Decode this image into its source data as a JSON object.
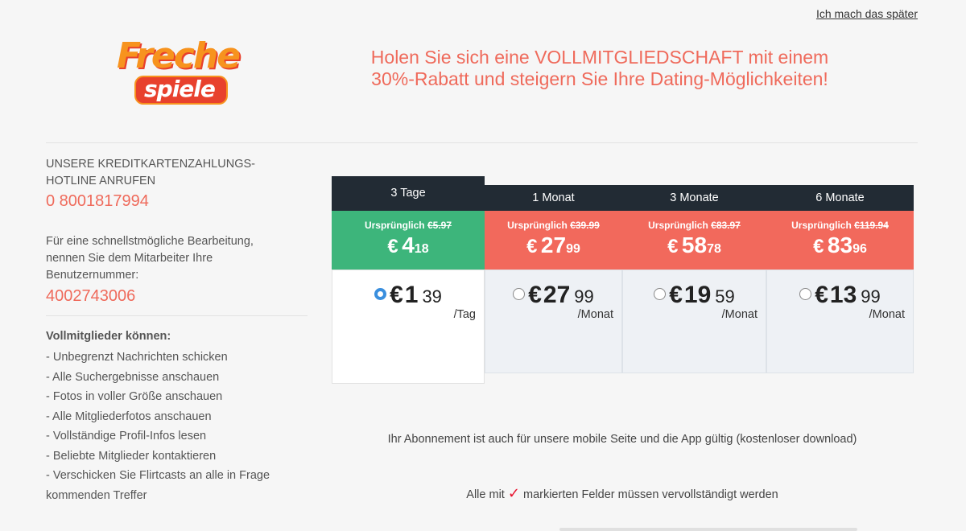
{
  "header": {
    "skip_link": "Ich mach das später",
    "logo_top": "Freche",
    "logo_bottom": "spiele",
    "headline_line1": "Holen Sie sich eine VOLLMITGLIEDSCHAFT mit einem",
    "headline_line2": "30%-Rabatt und steigern Sie Ihre Dating-Möglichkeiten!"
  },
  "sidebar": {
    "hotline_title": "UNSERE KREDITKARTENZAHLUNGS-HOTLINE ANRUFEN",
    "phone": "0 8001817994",
    "processing_text": "Für eine schnellstmögliche Bearbeitung, nennen Sie dem Mitarbeiter Ihre Benutzernummer:",
    "user_number": "4002743006",
    "benefits_title": "Vollmitglieder können:",
    "benefits": [
      "- Unbegrenzt Nachrichten schicken",
      "- Alle Suchergebnisse anschauen",
      "- Fotos in voller Größe anschauen",
      "- Alle Mitgliederfotos anschauen",
      "- Vollständige Profil-Infos lesen",
      "- Beliebte Mitglieder kontaktieren",
      "- Verschicken Sie Flirtcasts an alle in Frage kommenden Treffer"
    ]
  },
  "plans": [
    {
      "title": "3 Tage",
      "orig_label": "Ursprünglich",
      "orig_price": "€5.97",
      "total_currency": "€",
      "total_major": "4",
      "total_minor": "18",
      "per_currency": "€",
      "per_major": "1",
      "per_minor": "39",
      "per_unit": "/Tag",
      "selected": true,
      "price_color": "#3db57b"
    },
    {
      "title": "1 Monat",
      "orig_label": "Ursprünglich",
      "orig_price": "€39.99",
      "total_currency": "€",
      "total_major": "27",
      "total_minor": "99",
      "per_currency": "€",
      "per_major": "27",
      "per_minor": "99",
      "per_unit": "/Monat",
      "selected": false,
      "price_color": "#f2695c"
    },
    {
      "title": "3 Monate",
      "orig_label": "Ursprünglich",
      "orig_price": "€83.97",
      "total_currency": "€",
      "total_major": "58",
      "total_minor": "78",
      "per_currency": "€",
      "per_major": "19",
      "per_minor": "59",
      "per_unit": "/Monat",
      "selected": false,
      "price_color": "#f2695c"
    },
    {
      "title": "6 Monate",
      "orig_label": "Ursprünglich",
      "orig_price": "€119.94",
      "total_currency": "€",
      "total_major": "83",
      "total_minor": "96",
      "per_currency": "€",
      "per_major": "13",
      "per_minor": "99",
      "per_unit": "/Monat",
      "selected": false,
      "price_color": "#f2695c"
    }
  ],
  "notes": {
    "mobile_note": "Ihr Abonnement ist auch für unsere mobile Seite und die App gültig (kostenloser download)",
    "required_prefix": "Alle mit",
    "required_mark": "✓",
    "required_suffix": "markierten Felder müssen vervollständigt werden"
  },
  "colors": {
    "accent": "#ef6a5b",
    "header_dark": "#222b34",
    "radio_on": "#3a8fde"
  }
}
